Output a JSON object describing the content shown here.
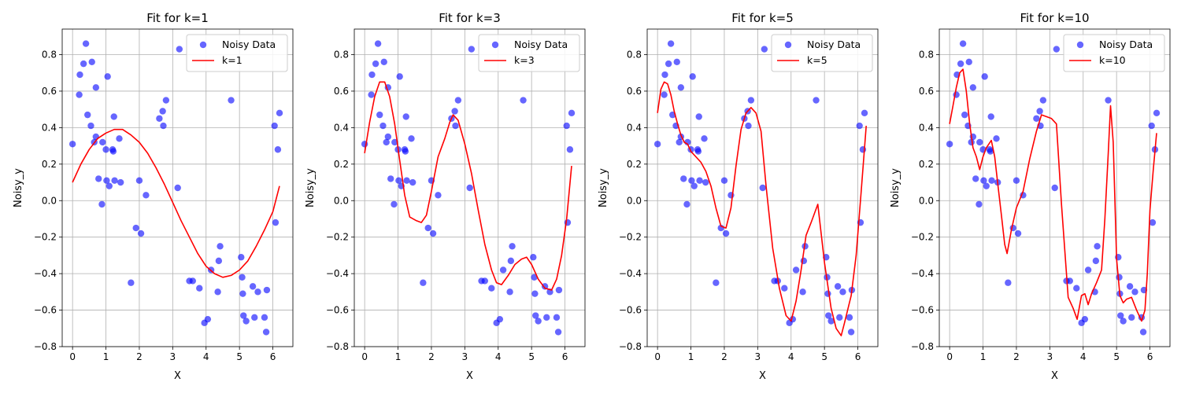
{
  "chart_data": [
    {
      "type": "scatter",
      "title": "Fit for k=1",
      "xlabel": "X",
      "ylabel": "Noisy_y",
      "xlim": [
        -0.31,
        6.6
      ],
      "ylim": [
        -0.8,
        0.94
      ],
      "xticks": [
        0,
        1,
        2,
        3,
        4,
        5,
        6
      ],
      "yticks": [
        -0.8,
        -0.6,
        -0.4,
        -0.2,
        0.0,
        0.2,
        0.4,
        0.6,
        0.8
      ],
      "grid": true,
      "legend_position": "top-right",
      "scatter_series": {
        "name": "Noisy Data",
        "color": "#0000ff"
      },
      "fit_series": {
        "name": "k=1",
        "color": "#ff0000"
      }
    },
    {
      "type": "scatter",
      "title": "Fit for k=3",
      "xlabel": "X",
      "ylabel": "Noisy_y",
      "xlim": [
        -0.31,
        6.6
      ],
      "ylim": [
        -0.8,
        0.94
      ],
      "xticks": [
        0,
        1,
        2,
        3,
        4,
        5,
        6
      ],
      "yticks": [
        -0.8,
        -0.6,
        -0.4,
        -0.2,
        0.0,
        0.2,
        0.4,
        0.6,
        0.8
      ],
      "grid": true,
      "legend_position": "top-right",
      "scatter_series": {
        "name": "Noisy Data",
        "color": "#0000ff"
      },
      "fit_series": {
        "name": "k=3",
        "color": "#ff0000"
      }
    },
    {
      "type": "scatter",
      "title": "Fit for k=5",
      "xlabel": "X",
      "ylabel": "Noisy_y",
      "xlim": [
        -0.31,
        6.6
      ],
      "ylim": [
        -0.8,
        0.94
      ],
      "xticks": [
        0,
        1,
        2,
        3,
        4,
        5,
        6
      ],
      "yticks": [
        -0.8,
        -0.6,
        -0.4,
        -0.2,
        0.0,
        0.2,
        0.4,
        0.6,
        0.8
      ],
      "grid": true,
      "legend_position": "top-right",
      "scatter_series": {
        "name": "Noisy Data",
        "color": "#0000ff"
      },
      "fit_series": {
        "name": "k=5",
        "color": "#ff0000"
      }
    },
    {
      "type": "scatter",
      "title": "Fit for k=10",
      "xlabel": "X",
      "ylabel": "Noisy_y",
      "xlim": [
        -0.31,
        6.6
      ],
      "ylim": [
        -0.8,
        0.94
      ],
      "xticks": [
        0,
        1,
        2,
        3,
        4,
        5,
        6
      ],
      "yticks": [
        -0.8,
        -0.6,
        -0.4,
        -0.2,
        0.0,
        0.2,
        0.4,
        0.6,
        0.8
      ],
      "grid": true,
      "legend_position": "top-right",
      "scatter_series": {
        "name": "Noisy Data",
        "color": "#0000ff"
      },
      "fit_series": {
        "name": "k=10",
        "color": "#ff0000"
      }
    }
  ],
  "scatter_points": [
    [
      0.0,
      0.31
    ],
    [
      0.2,
      0.58
    ],
    [
      0.22,
      0.69
    ],
    [
      0.33,
      0.75
    ],
    [
      0.4,
      0.86
    ],
    [
      0.45,
      0.47
    ],
    [
      0.55,
      0.41
    ],
    [
      0.58,
      0.76
    ],
    [
      0.65,
      0.32
    ],
    [
      0.7,
      0.35
    ],
    [
      0.7,
      0.62
    ],
    [
      0.78,
      0.12
    ],
    [
      0.88,
      -0.02
    ],
    [
      0.9,
      0.32
    ],
    [
      1.0,
      0.28
    ],
    [
      1.02,
      0.11
    ],
    [
      1.05,
      0.68
    ],
    [
      1.1,
      0.08
    ],
    [
      1.2,
      0.28
    ],
    [
      1.22,
      0.27
    ],
    [
      1.24,
      0.46
    ],
    [
      1.26,
      0.11
    ],
    [
      1.4,
      0.34
    ],
    [
      1.44,
      0.1
    ],
    [
      1.75,
      -0.45
    ],
    [
      1.9,
      -0.15
    ],
    [
      2.0,
      0.11
    ],
    [
      2.05,
      -0.18
    ],
    [
      2.2,
      0.03
    ],
    [
      2.6,
      0.45
    ],
    [
      2.7,
      0.49
    ],
    [
      2.72,
      0.41
    ],
    [
      2.8,
      0.55
    ],
    [
      3.15,
      0.07
    ],
    [
      3.2,
      0.83
    ],
    [
      3.5,
      -0.44
    ],
    [
      3.6,
      -0.44
    ],
    [
      3.8,
      -0.48
    ],
    [
      3.95,
      -0.67
    ],
    [
      4.05,
      -0.65
    ],
    [
      4.15,
      -0.38
    ],
    [
      4.35,
      -0.5
    ],
    [
      4.38,
      -0.33
    ],
    [
      4.42,
      -0.25
    ],
    [
      4.75,
      0.55
    ],
    [
      5.05,
      -0.31
    ],
    [
      5.08,
      -0.42
    ],
    [
      5.1,
      -0.51
    ],
    [
      5.12,
      -0.63
    ],
    [
      5.2,
      -0.66
    ],
    [
      5.4,
      -0.47
    ],
    [
      5.45,
      -0.64
    ],
    [
      5.55,
      -0.5
    ],
    [
      5.75,
      -0.64
    ],
    [
      5.8,
      -0.72
    ],
    [
      5.82,
      -0.49
    ],
    [
      6.05,
      0.41
    ],
    [
      6.08,
      -0.12
    ],
    [
      6.15,
      0.28
    ],
    [
      6.2,
      0.48
    ]
  ],
  "fit_curves": [
    [
      [
        0,
        0.1
      ],
      [
        0.25,
        0.2
      ],
      [
        0.5,
        0.28
      ],
      [
        0.75,
        0.34
      ],
      [
        1,
        0.37
      ],
      [
        1.25,
        0.39
      ],
      [
        1.5,
        0.39
      ],
      [
        1.75,
        0.36
      ],
      [
        2,
        0.32
      ],
      [
        2.25,
        0.26
      ],
      [
        2.5,
        0.18
      ],
      [
        2.75,
        0.09
      ],
      [
        3,
        -0.01
      ],
      [
        3.25,
        -0.11
      ],
      [
        3.5,
        -0.2
      ],
      [
        3.75,
        -0.29
      ],
      [
        4,
        -0.36
      ],
      [
        4.25,
        -0.4
      ],
      [
        4.5,
        -0.42
      ],
      [
        4.75,
        -0.41
      ],
      [
        5,
        -0.38
      ],
      [
        5.25,
        -0.33
      ],
      [
        5.5,
        -0.25
      ],
      [
        5.75,
        -0.16
      ],
      [
        6,
        -0.06
      ],
      [
        6.2,
        0.08
      ]
    ],
    [
      [
        0,
        0.26
      ],
      [
        0.15,
        0.43
      ],
      [
        0.3,
        0.57
      ],
      [
        0.45,
        0.65
      ],
      [
        0.6,
        0.65
      ],
      [
        0.75,
        0.57
      ],
      [
        0.9,
        0.42
      ],
      [
        1.05,
        0.22
      ],
      [
        1.2,
        0.03
      ],
      [
        1.35,
        -0.09
      ],
      [
        1.55,
        -0.11
      ],
      [
        1.7,
        -0.12
      ],
      [
        1.85,
        -0.08
      ],
      [
        2,
        0.05
      ],
      [
        2.2,
        0.24
      ],
      [
        2.4,
        0.34
      ],
      [
        2.55,
        0.43
      ],
      [
        2.65,
        0.47
      ],
      [
        2.8,
        0.44
      ],
      [
        3,
        0.31
      ],
      [
        3.2,
        0.15
      ],
      [
        3.4,
        -0.05
      ],
      [
        3.6,
        -0.24
      ],
      [
        3.8,
        -0.38
      ],
      [
        3.95,
        -0.45
      ],
      [
        4.1,
        -0.46
      ],
      [
        4.3,
        -0.41
      ],
      [
        4.5,
        -0.35
      ],
      [
        4.7,
        -0.32
      ],
      [
        4.85,
        -0.31
      ],
      [
        5,
        -0.35
      ],
      [
        5.2,
        -0.43
      ],
      [
        5.4,
        -0.48
      ],
      [
        5.6,
        -0.49
      ],
      [
        5.75,
        -0.43
      ],
      [
        5.9,
        -0.3
      ],
      [
        6.05,
        -0.1
      ],
      [
        6.2,
        0.19
      ]
    ],
    [
      [
        0,
        0.48
      ],
      [
        0.1,
        0.61
      ],
      [
        0.2,
        0.65
      ],
      [
        0.3,
        0.64
      ],
      [
        0.4,
        0.58
      ],
      [
        0.5,
        0.49
      ],
      [
        0.6,
        0.42
      ],
      [
        0.7,
        0.36
      ],
      [
        0.8,
        0.32
      ],
      [
        0.9,
        0.31
      ],
      [
        1.0,
        0.27
      ],
      [
        1.15,
        0.24
      ],
      [
        1.3,
        0.21
      ],
      [
        1.45,
        0.16
      ],
      [
        1.6,
        0.08
      ],
      [
        1.75,
        -0.04
      ],
      [
        1.9,
        -0.14
      ],
      [
        2.05,
        -0.15
      ],
      [
        2.2,
        -0.04
      ],
      [
        2.35,
        0.19
      ],
      [
        2.5,
        0.39
      ],
      [
        2.65,
        0.48
      ],
      [
        2.8,
        0.51
      ],
      [
        2.95,
        0.48
      ],
      [
        3.1,
        0.38
      ],
      [
        3.25,
        0.08
      ],
      [
        3.45,
        -0.26
      ],
      [
        3.65,
        -0.48
      ],
      [
        3.85,
        -0.63
      ],
      [
        4.0,
        -0.66
      ],
      [
        4.15,
        -0.55
      ],
      [
        4.3,
        -0.38
      ],
      [
        4.45,
        -0.19
      ],
      [
        4.6,
        -0.12
      ],
      [
        4.8,
        -0.02
      ],
      [
        5.0,
        -0.34
      ],
      [
        5.2,
        -0.59
      ],
      [
        5.35,
        -0.7
      ],
      [
        5.5,
        -0.74
      ],
      [
        5.6,
        -0.67
      ],
      [
        5.8,
        -0.52
      ],
      [
        5.95,
        -0.3
      ],
      [
        6.1,
        0.05
      ],
      [
        6.25,
        0.41
      ]
    ],
    [
      [
        0,
        0.42
      ],
      [
        0.1,
        0.52
      ],
      [
        0.2,
        0.62
      ],
      [
        0.3,
        0.7
      ],
      [
        0.4,
        0.72
      ],
      [
        0.5,
        0.6
      ],
      [
        0.6,
        0.42
      ],
      [
        0.7,
        0.29
      ],
      [
        0.8,
        0.24
      ],
      [
        0.9,
        0.17
      ],
      [
        1.0,
        0.24
      ],
      [
        1.1,
        0.29
      ],
      [
        1.25,
        0.33
      ],
      [
        1.35,
        0.24
      ],
      [
        1.45,
        0.08
      ],
      [
        1.55,
        -0.08
      ],
      [
        1.65,
        -0.24
      ],
      [
        1.72,
        -0.29
      ],
      [
        1.85,
        -0.16
      ],
      [
        2.0,
        -0.04
      ],
      [
        2.2,
        0.05
      ],
      [
        2.4,
        0.23
      ],
      [
        2.6,
        0.38
      ],
      [
        2.75,
        0.47
      ],
      [
        2.9,
        0.46
      ],
      [
        3.05,
        0.45
      ],
      [
        3.2,
        0.42
      ],
      [
        3.35,
        -0.02
      ],
      [
        3.55,
        -0.53
      ],
      [
        3.7,
        -0.59
      ],
      [
        3.82,
        -0.65
      ],
      [
        3.95,
        -0.52
      ],
      [
        4.05,
        -0.51
      ],
      [
        4.15,
        -0.57
      ],
      [
        4.25,
        -0.51
      ],
      [
        4.4,
        -0.45
      ],
      [
        4.55,
        -0.38
      ],
      [
        4.65,
        -0.1
      ],
      [
        4.75,
        0.26
      ],
      [
        4.82,
        0.52
      ],
      [
        4.9,
        0.32
      ],
      [
        5.0,
        -0.32
      ],
      [
        5.1,
        -0.52
      ],
      [
        5.2,
        -0.56
      ],
      [
        5.3,
        -0.54
      ],
      [
        5.45,
        -0.53
      ],
      [
        5.6,
        -0.6
      ],
      [
        5.75,
        -0.66
      ],
      [
        5.85,
        -0.6
      ],
      [
        5.92,
        -0.4
      ],
      [
        6.0,
        -0.05
      ],
      [
        6.1,
        0.17
      ],
      [
        6.2,
        0.37
      ]
    ]
  ]
}
